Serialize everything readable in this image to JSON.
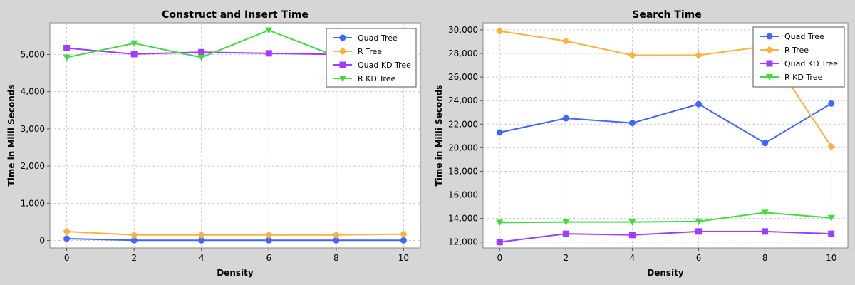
{
  "chart_data": [
    {
      "type": "line",
      "title": "Construct and Insert Time",
      "xlabel": "Density",
      "ylabel": "Time in Milli Seconds",
      "x": [
        0,
        2,
        4,
        6,
        8,
        10
      ],
      "xlim": [
        -0.5,
        10.5
      ],
      "ylim": [
        -200,
        5850
      ],
      "xticks": [
        0,
        2,
        4,
        6,
        8,
        10
      ],
      "yticks": [
        0,
        1000,
        2000,
        3000,
        4000,
        5000
      ],
      "ytick_labels": [
        "0",
        "1,000",
        "2,000",
        "3,000",
        "4,000",
        "5,000"
      ],
      "grid": true,
      "legend_position": "top-right",
      "series": [
        {
          "name": "Quad Tree",
          "color": "#3f67ff",
          "marker": "circle",
          "values": [
            50,
            5,
            5,
            5,
            5,
            5
          ]
        },
        {
          "name": "R Tree",
          "color": "#ffb13d",
          "marker": "diamond",
          "values": [
            240,
            150,
            150,
            150,
            150,
            170
          ]
        },
        {
          "name": "Quad KD Tree",
          "color": "#a03cff",
          "marker": "square",
          "values": [
            5170,
            5010,
            5060,
            5030,
            5000,
            5000
          ]
        },
        {
          "name": "R KD Tree",
          "color": "#3fdb3f",
          "marker": "triangle-down",
          "values": [
            4920,
            5300,
            4920,
            5650,
            4950,
            4950
          ]
        }
      ]
    },
    {
      "type": "line",
      "title": "Search Time",
      "xlabel": "Density",
      "ylabel": "Time in Milli Seconds",
      "x": [
        0,
        2,
        4,
        6,
        8,
        10
      ],
      "xlim": [
        -0.5,
        10.5
      ],
      "ylim": [
        11500,
        30600
      ],
      "xticks": [
        0,
        2,
        4,
        6,
        8,
        10
      ],
      "yticks": [
        12000,
        14000,
        16000,
        18000,
        20000,
        22000,
        24000,
        26000,
        28000,
        30000
      ],
      "ytick_labels": [
        "12,000",
        "14,000",
        "16,000",
        "18,000",
        "20,000",
        "22,000",
        "24,000",
        "26,000",
        "28,000",
        "30,000"
      ],
      "grid": true,
      "legend_position": "top-right",
      "series": [
        {
          "name": "Quad Tree",
          "color": "#3f67ff",
          "marker": "circle",
          "values": [
            21300,
            22500,
            22100,
            23700,
            20400,
            23750
          ]
        },
        {
          "name": "R Tree",
          "color": "#ffb13d",
          "marker": "diamond",
          "values": [
            29900,
            29050,
            27850,
            27850,
            28600,
            20100
          ]
        },
        {
          "name": "Quad KD Tree",
          "color": "#a03cff",
          "marker": "square",
          "values": [
            12000,
            12700,
            12600,
            12900,
            12900,
            12700
          ]
        },
        {
          "name": "R KD Tree",
          "color": "#3fdb3f",
          "marker": "triangle-down",
          "values": [
            13650,
            13700,
            13700,
            13750,
            14500,
            14050
          ]
        }
      ]
    }
  ]
}
